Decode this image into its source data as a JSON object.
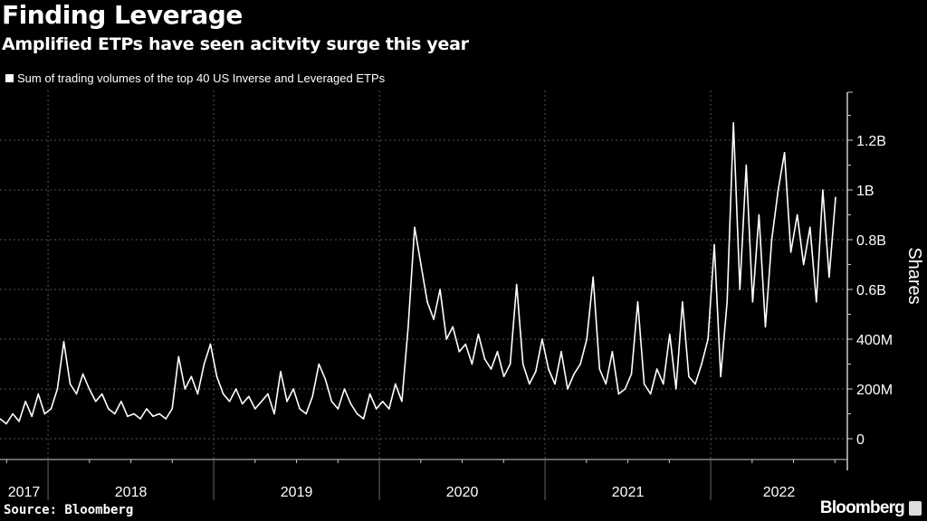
{
  "header": {
    "title": "Finding Leverage",
    "subtitle": "Amplified ETPs have seen acitvity surge this year",
    "legend": "Sum of trading volumes of the top 40 US Inverse and Leveraged ETPs"
  },
  "footer": {
    "source": "Source: Bloomberg",
    "brand": "Bloomberg"
  },
  "colors": {
    "background": "#000000",
    "line": "#ffffff",
    "grid": "#555555"
  },
  "chart_data": {
    "type": "line",
    "title": "Finding Leverage",
    "subtitle": "Amplified ETPs have seen acitvity surge this year",
    "xlabel": "",
    "ylabel": "Shares",
    "units": "billions of shares",
    "x_start": 2017.71,
    "x_step": 0.0385,
    "xlim": [
      2017.71,
      2022.71
    ],
    "ylim": [
      -0.08,
      1.4
    ],
    "grid": true,
    "legend_position": "top-left",
    "yticks": [
      0,
      0.2,
      0.4,
      0.6,
      0.8,
      1.0,
      1.2
    ],
    "ytick_labels": [
      "0",
      "200M",
      "400M",
      "0.6B",
      "0.8B",
      "1B",
      "1.2B"
    ],
    "xtick_labels": [
      {
        "label": "2017",
        "year": 2017
      },
      {
        "label": "2018",
        "year": 2018
      },
      {
        "label": "2019",
        "year": 2019
      },
      {
        "label": "2020",
        "year": 2020
      },
      {
        "label": "2021",
        "year": 2021
      },
      {
        "label": "2022",
        "year": 2022
      }
    ],
    "series": [
      {
        "name": "Sum of trading volumes of the top 40 US Inverse and Leveraged ETPs",
        "values": [
          0.08,
          0.06,
          0.1,
          0.07,
          0.15,
          0.09,
          0.18,
          0.1,
          0.12,
          0.2,
          0.39,
          0.22,
          0.18,
          0.26,
          0.2,
          0.15,
          0.18,
          0.12,
          0.1,
          0.15,
          0.09,
          0.1,
          0.08,
          0.12,
          0.09,
          0.1,
          0.08,
          0.12,
          0.33,
          0.2,
          0.25,
          0.18,
          0.3,
          0.38,
          0.25,
          0.18,
          0.15,
          0.2,
          0.14,
          0.17,
          0.12,
          0.15,
          0.18,
          0.1,
          0.27,
          0.15,
          0.2,
          0.12,
          0.1,
          0.17,
          0.3,
          0.24,
          0.15,
          0.12,
          0.2,
          0.14,
          0.1,
          0.08,
          0.18,
          0.12,
          0.15,
          0.12,
          0.22,
          0.15,
          0.45,
          0.85,
          0.7,
          0.55,
          0.48,
          0.6,
          0.4,
          0.45,
          0.35,
          0.38,
          0.3,
          0.42,
          0.32,
          0.28,
          0.35,
          0.25,
          0.3,
          0.62,
          0.3,
          0.22,
          0.27,
          0.4,
          0.28,
          0.22,
          0.35,
          0.2,
          0.26,
          0.3,
          0.4,
          0.65,
          0.28,
          0.22,
          0.35,
          0.18,
          0.2,
          0.26,
          0.55,
          0.22,
          0.18,
          0.28,
          0.22,
          0.42,
          0.2,
          0.55,
          0.25,
          0.22,
          0.3,
          0.4,
          0.78,
          0.25,
          0.55,
          1.27,
          0.6,
          1.1,
          0.55,
          0.9,
          0.45,
          0.8,
          1.0,
          1.15,
          0.75,
          0.9,
          0.7,
          0.85,
          0.55,
          1.0,
          0.65,
          0.97
        ]
      }
    ]
  }
}
